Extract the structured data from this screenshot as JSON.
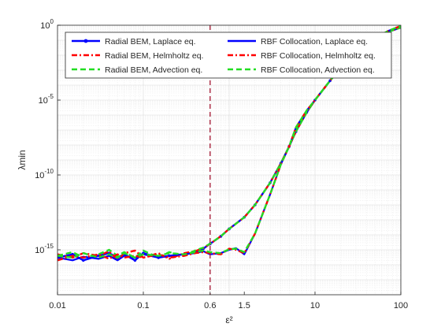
{
  "chart_data": {
    "type": "line",
    "x_scale": "log",
    "y_scale": "log",
    "xlim": [
      0.01,
      100
    ],
    "ylim": [
      1e-18,
      1
    ],
    "xlabel": "ε²",
    "ylabel": "λmin",
    "grid": true,
    "legend_position": "top-right",
    "x_ticks": [
      {
        "value": 0.01,
        "label": "0.01"
      },
      {
        "value": 0.1,
        "label": "0.1"
      },
      {
        "value": 0.6,
        "label": "0.6"
      },
      {
        "value": 1.5,
        "label": "1.5"
      },
      {
        "value": 10,
        "label": "10"
      },
      {
        "value": 100,
        "label": "100"
      }
    ],
    "y_ticks": [
      {
        "value": 1,
        "label": "10^0"
      },
      {
        "value": 1e-05,
        "label": "10^-5"
      },
      {
        "value": 1e-10,
        "label": "10^-10"
      },
      {
        "value": 1e-15,
        "label": "10^-15"
      }
    ],
    "vertical_line": {
      "x": 0.6,
      "color": "#a2142f",
      "style": "dashed"
    },
    "series": [
      {
        "name": "Radial BEM, Laplace eq.",
        "color": "#0000ff",
        "style": "solid-dot",
        "x": [
          0.01,
          0.015,
          0.02,
          0.03,
          0.04,
          0.05,
          0.06,
          0.08,
          0.1,
          0.15,
          0.2,
          0.3,
          0.4,
          0.5,
          0.6,
          0.8,
          1.0,
          1.5,
          2,
          3,
          4,
          5,
          6,
          8,
          10,
          15,
          20,
          30,
          50,
          70,
          100
        ],
        "y": [
          3e-16,
          5e-16,
          2e-16,
          4e-16,
          6e-16,
          3e-16,
          5e-16,
          2e-16,
          6e-16,
          3e-16,
          4e-16,
          5e-16,
          7e-16,
          1.2e-15,
          2.5e-15,
          8e-15,
          2.5e-14,
          1.5e-13,
          1e-12,
          3e-11,
          6e-10,
          8e-09,
          8e-08,
          1.5e-06,
          1e-05,
          0.0002,
          0.0015,
          0.012,
          0.12,
          0.35,
          0.7
        ]
      },
      {
        "name": "Radial BEM, Helmholtz eq.",
        "color": "#ff0000",
        "style": "dash-dot",
        "x": [
          0.01,
          0.015,
          0.02,
          0.03,
          0.04,
          0.05,
          0.06,
          0.08,
          0.1,
          0.15,
          0.2,
          0.3,
          0.4,
          0.5,
          0.6,
          0.8,
          1.0,
          1.5,
          2,
          3,
          4,
          5,
          6,
          8,
          10,
          15,
          20,
          30,
          50,
          70,
          100
        ],
        "y": [
          5e-16,
          3e-16,
          6e-16,
          4e-16,
          8e-16,
          2e-16,
          6e-16,
          9e-16,
          3e-16,
          6e-16,
          2.5e-16,
          6e-16,
          8e-16,
          1.3e-15,
          2.5e-15,
          8e-15,
          2.5e-14,
          1.5e-13,
          1e-12,
          3e-11,
          6e-10,
          8e-09,
          8e-08,
          1.5e-06,
          1e-05,
          0.0002,
          0.0015,
          0.012,
          0.12,
          0.35,
          0.7
        ]
      },
      {
        "name": "Radial BEM, Advection eq.",
        "color": "#22dd22",
        "style": "dashed",
        "x": [
          0.01,
          0.015,
          0.02,
          0.03,
          0.04,
          0.05,
          0.06,
          0.08,
          0.1,
          0.15,
          0.2,
          0.3,
          0.4,
          0.5,
          0.6,
          0.8,
          1.0,
          1.5,
          2,
          3,
          4,
          5,
          6,
          8,
          10,
          15,
          20,
          30,
          50,
          70,
          100
        ],
        "y": [
          4e-16,
          7e-16,
          3e-16,
          5e-16,
          1e-15,
          4e-16,
          7e-16,
          3e-16,
          9e-16,
          3e-16,
          7e-16,
          4e-16,
          9e-16,
          1.4e-15,
          2.6e-15,
          8e-15,
          2.5e-14,
          1.5e-13,
          1e-12,
          3e-11,
          6e-10,
          8e-09,
          8e-08,
          1.5e-06,
          1e-05,
          0.0002,
          0.0015,
          0.012,
          0.12,
          0.35,
          0.7
        ]
      },
      {
        "name": "RBF Collocation, Laplace eq.",
        "color": "#0000ff",
        "style": "solid",
        "x": [
          0.01,
          0.015,
          0.02,
          0.03,
          0.04,
          0.05,
          0.06,
          0.08,
          0.1,
          0.15,
          0.2,
          0.3,
          0.4,
          0.5,
          0.6,
          0.8,
          1.0,
          1.2,
          1.5,
          2,
          3,
          4,
          5,
          6,
          8,
          10,
          15,
          20,
          30,
          50,
          70,
          100
        ],
        "y": [
          3e-16,
          2e-16,
          3.5e-16,
          2.5e-16,
          4e-16,
          2e-16,
          4e-16,
          3e-16,
          5e-16,
          3e-16,
          4e-16,
          5e-16,
          6e-16,
          8e-16,
          5e-16,
          6e-16,
          1e-15,
          1.3e-15,
          5e-16,
          1.2e-14,
          5e-12,
          5e-10,
          8e-09,
          1.5e-07,
          2e-06,
          1e-05,
          0.0002,
          0.0015,
          0.012,
          0.12,
          0.4,
          0.9
        ]
      },
      {
        "name": "RBF Collocation, Helmholtz eq.",
        "color": "#ff0000",
        "style": "dash-dot",
        "x": [
          0.01,
          0.015,
          0.02,
          0.03,
          0.04,
          0.05,
          0.06,
          0.08,
          0.1,
          0.15,
          0.2,
          0.3,
          0.4,
          0.5,
          0.6,
          0.8,
          1.0,
          1.2,
          1.5,
          2,
          3,
          4,
          5,
          6,
          8,
          10,
          15,
          20,
          30,
          50,
          70,
          100
        ],
        "y": [
          2e-16,
          4e-16,
          3e-16,
          5e-16,
          2.5e-16,
          5e-16,
          3e-16,
          4e-16,
          3e-16,
          5e-16,
          3e-16,
          4e-16,
          6e-16,
          7e-16,
          6e-16,
          5e-16,
          1.2e-15,
          1e-15,
          6e-16,
          1.2e-14,
          5e-12,
          5e-10,
          8e-09,
          1.5e-07,
          2e-06,
          1e-05,
          0.0002,
          0.0015,
          0.012,
          0.12,
          0.4,
          0.9
        ]
      },
      {
        "name": "RBF Collocation, Advection eq.",
        "color": "#22dd22",
        "style": "dashed",
        "x": [
          0.01,
          0.015,
          0.02,
          0.03,
          0.04,
          0.05,
          0.06,
          0.08,
          0.1,
          0.15,
          0.2,
          0.3,
          0.4,
          0.5,
          0.6,
          0.8,
          1.0,
          1.2,
          1.5,
          2,
          3,
          4,
          5,
          6,
          8,
          10,
          15,
          20,
          30,
          50,
          70,
          100
        ],
        "y": [
          4e-16,
          3e-16,
          6e-16,
          3e-16,
          5e-16,
          3e-16,
          6e-16,
          3e-16,
          5e-16,
          4e-16,
          6e-16,
          5e-16,
          7e-16,
          9e-16,
          7e-16,
          6e-16,
          1.1e-15,
          1.2e-15,
          7e-16,
          1.2e-14,
          5e-12,
          5e-10,
          8e-09,
          1.5e-07,
          2e-06,
          1e-05,
          0.0002,
          0.0015,
          0.012,
          0.12,
          0.4,
          0.9
        ]
      }
    ]
  }
}
